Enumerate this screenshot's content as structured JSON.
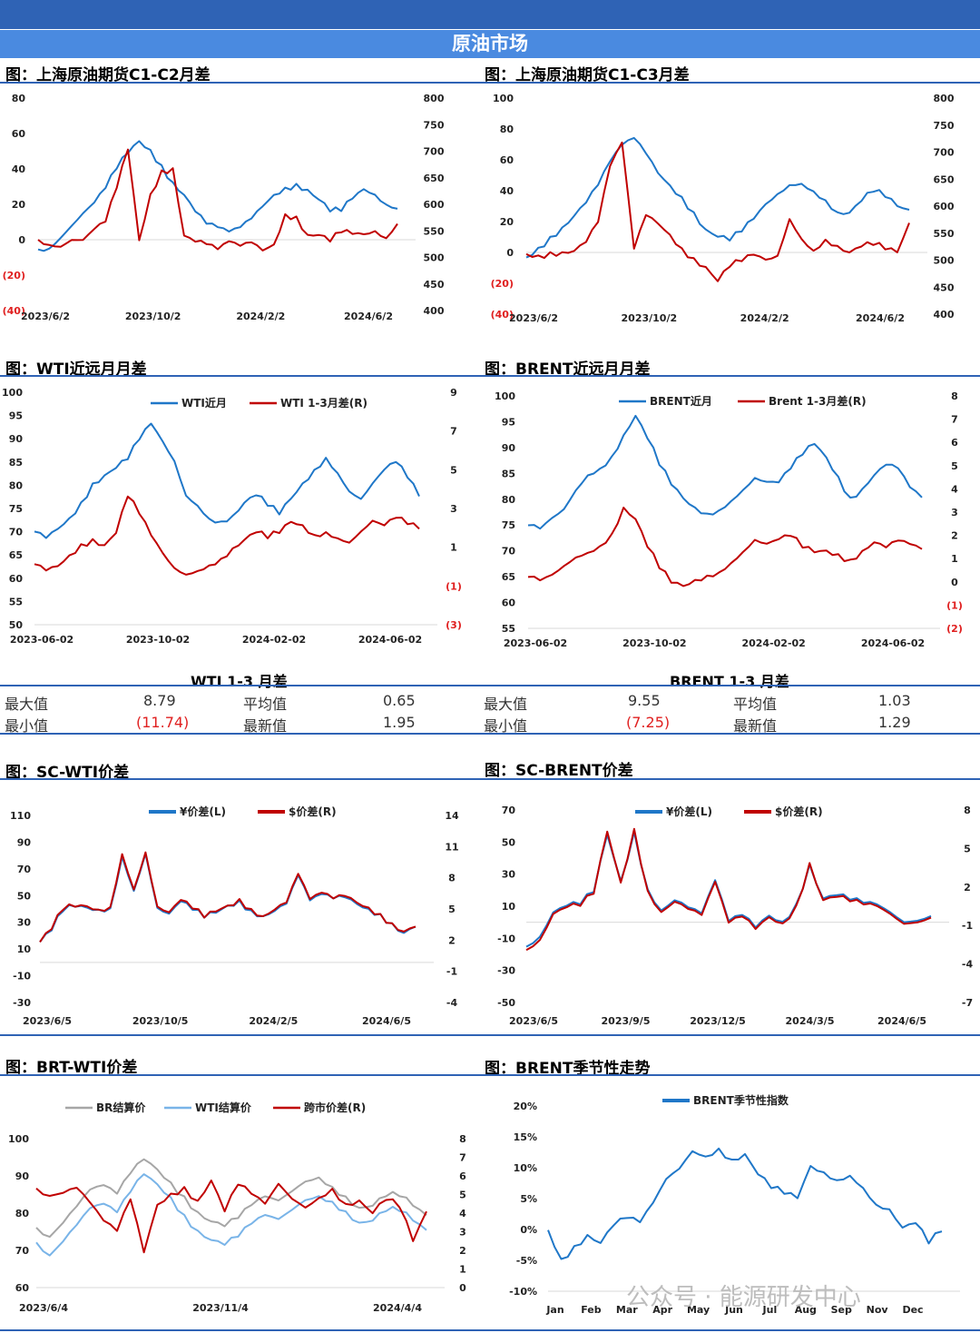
{
  "header": {
    "title": "原油市场"
  },
  "colors": {
    "blue": "#1f77c8",
    "red": "#c00000",
    "gray": "#a6a6a6",
    "lightblue": "#79b4e8",
    "neg": "#e02020"
  },
  "watermark": "公众号 · 能源研发中心",
  "wti_stats": {
    "title": "WTI 1-3 月差",
    "max_label": "最大值",
    "max": "8.79",
    "min_label": "最小值",
    "min": "(11.74)",
    "avg_label": "平均值",
    "avg": "0.65",
    "latest_label": "最新值",
    "latest": "1.95"
  },
  "brent_stats": {
    "title": "BRENT 1-3 月差",
    "max_label": "最大值",
    "max": "9.55",
    "min_label": "最小值",
    "min": "(7.25)",
    "avg_label": "平均值",
    "avg": "1.03",
    "latest_label": "最新值",
    "latest": "1.29"
  },
  "chart_data": [
    {
      "id": "c1",
      "type": "line",
      "title": "图：上海原油期货C1-C2月差",
      "x_ticks": [
        "2023/6/2",
        "2023/10/2",
        "2024/2/2",
        "2024/6/2"
      ],
      "yl": {
        "ticks": [
          80,
          60,
          40,
          20,
          0,
          -20,
          -40
        ],
        "labels": [
          "80",
          "60",
          "40",
          "20",
          "0",
          "(20)",
          "(40)"
        ],
        "min": -40,
        "max": 80
      },
      "yr": {
        "ticks": [
          800,
          750,
          700,
          650,
          600,
          550,
          500,
          450,
          400
        ],
        "labels": [
          "800",
          "750",
          "700",
          "650",
          "600",
          "550",
          "500",
          "450",
          "400"
        ],
        "min": 400,
        "max": 800
      },
      "series": [
        {
          "axis": "right",
          "color": "blue",
          "values": [
            515,
            520,
            540,
            560,
            580,
            600,
            630,
            670,
            700,
            720,
            700,
            670,
            640,
            620,
            590,
            565,
            555,
            545,
            555,
            575,
            600,
            620,
            630,
            635,
            625,
            610,
            590,
            590,
            610,
            625,
            615,
            600,
            595
          ]
        },
        {
          "axis": "left",
          "color": "red",
          "values": [
            0,
            -2,
            -3,
            0,
            -1,
            5,
            10,
            30,
            52,
            0,
            25,
            38,
            40,
            3,
            0,
            -2,
            -6,
            -2,
            -4,
            -1,
            -5,
            -2,
            14,
            12,
            2,
            3,
            0,
            5,
            3,
            2,
            4,
            1,
            10
          ]
        }
      ]
    },
    {
      "id": "c2",
      "type": "line",
      "title": "图：上海原油期货C1-C3月差",
      "x_ticks": [
        "2023/6/2",
        "2023/10/2",
        "2024/2/2",
        "2024/6/2"
      ],
      "yl": {
        "ticks": [
          100,
          80,
          60,
          40,
          20,
          0,
          -20,
          -40
        ],
        "labels": [
          "100",
          "80",
          "60",
          "40",
          "20",
          "0",
          "(20)",
          "(40)"
        ],
        "min": -40,
        "max": 100
      },
      "yr": {
        "ticks": [
          800,
          750,
          700,
          650,
          600,
          550,
          500,
          450,
          400
        ],
        "labels": [
          "800",
          "750",
          "700",
          "650",
          "600",
          "550",
          "500",
          "450",
          "400"
        ],
        "min": 400,
        "max": 800
      },
      "series": [
        {
          "axis": "right",
          "color": "blue",
          "values": [
            505,
            520,
            540,
            560,
            585,
            610,
            640,
            680,
            710,
            725,
            700,
            665,
            640,
            615,
            585,
            555,
            545,
            540,
            555,
            575,
            600,
            620,
            640,
            645,
            630,
            610,
            585,
            585,
            610,
            630,
            620,
            600,
            590
          ]
        },
        {
          "axis": "left",
          "color": "red",
          "values": [
            -1,
            -3,
            -1,
            0,
            2,
            8,
            20,
            55,
            70,
            2,
            25,
            20,
            12,
            2,
            -5,
            -10,
            -18,
            -8,
            -5,
            -2,
            -6,
            -3,
            22,
            10,
            2,
            8,
            3,
            -1,
            4,
            6,
            3,
            0,
            18
          ]
        }
      ]
    },
    {
      "id": "c3",
      "type": "line",
      "title": "图：WTI近远月月差",
      "x_ticks": [
        "2023-06-02",
        "2023-10-02",
        "2024-02-02",
        "2024-06-02"
      ],
      "legend": [
        "WTI近月",
        "WTI 1-3月差(R)"
      ],
      "yl": {
        "ticks": [
          100,
          95,
          90,
          85,
          80,
          75,
          70,
          65,
          60,
          55,
          50
        ],
        "labels": [
          "100",
          "95",
          "90",
          "85",
          "80",
          "75",
          "70",
          "65",
          "60",
          "55",
          "50"
        ],
        "min": 50,
        "max": 100
      },
      "yr": {
        "ticks": [
          9,
          7,
          5,
          3,
          1,
          -1,
          -3
        ],
        "labels": [
          "9",
          "7",
          "5",
          "3",
          "1",
          "(1)",
          "(3)"
        ],
        "min": -3,
        "max": 9
      },
      "series": [
        {
          "axis": "left",
          "name": "WTI近月",
          "color": "blue",
          "values": [
            70,
            69,
            71,
            73,
            76,
            80,
            82,
            84,
            86,
            90,
            93,
            89,
            85,
            78,
            76,
            73,
            72,
            73,
            76,
            78,
            76,
            74,
            77,
            80,
            83,
            86,
            83,
            79,
            77,
            80,
            83,
            85,
            82,
            78
          ]
        },
        {
          "axis": "left",
          "name": "WTI 1-3月差(R)",
          "color": "red",
          "values": [
            63,
            62,
            63,
            65,
            67,
            68,
            67,
            70,
            78,
            74,
            69,
            65,
            62,
            61,
            62,
            63,
            64,
            66,
            68,
            70,
            69,
            70,
            72,
            71,
            69,
            70,
            69,
            68,
            70,
            72,
            71,
            73,
            72,
            71
          ]
        }
      ]
    },
    {
      "id": "c4",
      "type": "line",
      "title": "图：BRENT近远月月差",
      "x_ticks": [
        "2023-06-02",
        "2023-10-02",
        "2024-02-02",
        "2024-06-02"
      ],
      "legend": [
        "BRENT近月",
        "Brent 1-3月差(R)"
      ],
      "yl": {
        "ticks": [
          100,
          95,
          90,
          85,
          80,
          75,
          70,
          65,
          60,
          55
        ],
        "labels": [
          "100",
          "95",
          "90",
          "85",
          "80",
          "75",
          "70",
          "65",
          "60",
          "55"
        ],
        "min": 55,
        "max": 100
      },
      "yr": {
        "ticks": [
          8,
          7,
          6,
          5,
          4,
          3,
          2,
          1,
          0,
          -1,
          -2
        ],
        "labels": [
          "8",
          "7",
          "6",
          "5",
          "4",
          "3",
          "2",
          "1",
          "0",
          "(1)",
          "(2)"
        ],
        "min": -2,
        "max": 8
      },
      "series": [
        {
          "axis": "left",
          "name": "BRENT近月",
          "color": "blue",
          "values": [
            75,
            74,
            76,
            78,
            82,
            85,
            86,
            88,
            92,
            96,
            92,
            87,
            83,
            80,
            78,
            77,
            78,
            80,
            82,
            84,
            83,
            83,
            86,
            89,
            91,
            88,
            84,
            80,
            82,
            85,
            87,
            86,
            82,
            80
          ]
        },
        {
          "axis": "left",
          "name": "Brent 1-3月差(R)",
          "color": "red",
          "values": [
            65,
            64,
            65,
            67,
            69,
            70,
            71,
            73,
            78,
            76,
            71,
            67,
            64,
            63,
            64,
            65,
            66,
            68,
            70,
            72,
            71,
            72,
            73,
            71,
            70,
            70,
            69,
            68,
            70,
            72,
            71,
            72,
            71,
            70
          ]
        }
      ]
    },
    {
      "id": "c5",
      "type": "line",
      "title": "图：SC-WTI价差",
      "x_ticks": [
        "2023/6/5",
        "2023/10/5",
        "2024/2/5",
        "2024/6/5"
      ],
      "legend": [
        "¥价差(L)",
        "$价差(R)"
      ],
      "yl": {
        "ticks": [
          110,
          90,
          70,
          50,
          30,
          10,
          -10,
          -30
        ],
        "labels": [
          "110",
          "90",
          "70",
          "50",
          "30",
          "10",
          "-10",
          "-30"
        ],
        "min": -30,
        "max": 110
      },
      "yr": {
        "ticks": [
          14,
          11,
          8,
          5,
          2,
          -1,
          -4
        ],
        "labels": [
          "14",
          "11",
          "8",
          "5",
          "2",
          "-1",
          "-4"
        ],
        "min": -4,
        "max": 14
      },
      "series": [
        {
          "axis": "left",
          "name": "¥价差(L)",
          "color": "blue",
          "values": [
            15,
            25,
            40,
            42,
            40,
            38,
            40,
            80,
            55,
            82,
            40,
            35,
            45,
            40,
            35,
            38,
            42,
            45,
            38,
            35,
            40,
            45,
            65,
            45,
            50,
            48,
            50,
            45,
            40,
            35,
            28,
            22,
            28
          ]
        },
        {
          "axis": "left",
          "name": "$价差(R)",
          "color": "red",
          "values": [
            15,
            26,
            41,
            42,
            41,
            38,
            41,
            82,
            56,
            83,
            41,
            36,
            46,
            41,
            35,
            39,
            42,
            46,
            39,
            35,
            41,
            46,
            66,
            46,
            51,
            48,
            51,
            46,
            41,
            35,
            28,
            23,
            28
          ]
        }
      ]
    },
    {
      "id": "c6",
      "type": "line",
      "title": "图：SC-BRENT价差",
      "x_ticks": [
        "2023/6/5",
        "2023/9/5",
        "2023/12/5",
        "2024/3/5",
        "2024/6/5"
      ],
      "legend": [
        "¥价差(L)",
        "$价差(R)"
      ],
      "yl": {
        "ticks": [
          70,
          50,
          30,
          10,
          -10,
          -30,
          -50
        ],
        "labels": [
          "70",
          "50",
          "30",
          "10",
          "-10",
          "-30",
          "-50"
        ],
        "min": -50,
        "max": 70
      },
      "yr": {
        "ticks": [
          8,
          5,
          2,
          -1,
          -4,
          -7
        ],
        "labels": [
          "8",
          "5",
          "2",
          "-1",
          "-4",
          "-7"
        ],
        "min": -7,
        "max": 8
      },
      "series": [
        {
          "axis": "left",
          "name": "¥价差(L)",
          "color": "blue",
          "values": [
            -15,
            -10,
            5,
            10,
            12,
            20,
            55,
            25,
            55,
            20,
            8,
            15,
            10,
            5,
            25,
            0,
            5,
            -2,
            5,
            0,
            10,
            35,
            15,
            18,
            15,
            12,
            10,
            5,
            0,
            2,
            5
          ]
        },
        {
          "axis": "left",
          "name": "$价差(R)",
          "color": "red",
          "values": [
            -17,
            -12,
            4,
            9,
            11,
            19,
            57,
            24,
            57,
            19,
            7,
            14,
            9,
            4,
            24,
            -1,
            4,
            -3,
            4,
            -1,
            9,
            36,
            14,
            17,
            14,
            11,
            9,
            4,
            -1,
            1,
            4
          ]
        }
      ]
    },
    {
      "id": "c7",
      "type": "line",
      "title": "图：BRT-WTI价差",
      "x_ticks": [
        "2023/6/4",
        "2023/11/4",
        "2024/4/4"
      ],
      "legend": [
        "BR结算价",
        "WTI结算价",
        "跨市价差(R)"
      ],
      "yl": {
        "ticks": [
          100,
          90,
          80,
          70,
          60
        ],
        "labels": [
          "100",
          "90",
          "80",
          "70",
          "60"
        ],
        "min": 60,
        "max": 100
      },
      "yr": {
        "ticks": [
          8,
          7,
          6,
          5,
          4,
          3,
          2,
          1,
          0
        ],
        "labels": [
          "8",
          "7",
          "6",
          "5",
          "4",
          "3",
          "2",
          "1",
          "0"
        ],
        "min": 0,
        "max": 8
      },
      "series": [
        {
          "axis": "left",
          "name": "BR结算价",
          "color": "gray",
          "values": [
            76,
            74,
            78,
            82,
            86,
            87,
            85,
            91,
            95,
            92,
            88,
            84,
            80,
            78,
            77,
            79,
            82,
            84,
            83,
            86,
            89,
            90,
            87,
            84,
            81,
            82,
            85,
            85,
            82,
            79
          ]
        },
        {
          "axis": "left",
          "name": "WTI结算价",
          "color": "lightblue",
          "values": [
            72,
            69,
            73,
            77,
            81,
            82,
            80,
            86,
            91,
            88,
            84,
            79,
            75,
            73,
            72,
            74,
            77,
            79,
            78,
            81,
            84,
            85,
            83,
            80,
            77,
            78,
            81,
            81,
            78,
            75
          ]
        },
        {
          "axis": "right",
          "name": "跨市价差(R)",
          "color": "red",
          "values": [
            5.3,
            5.0,
            5.2,
            5.4,
            4.5,
            3.5,
            3.0,
            4.8,
            2.0,
            4.5,
            5.0,
            5.3,
            4.6,
            5.8,
            4.2,
            5.6,
            5.0,
            4.4,
            5.5,
            4.8,
            4.4,
            4.9,
            5.3,
            4.4,
            4.6,
            4.0,
            4.8,
            4.4,
            2.5,
            4.0
          ]
        }
      ]
    },
    {
      "id": "c8",
      "type": "line",
      "title": "图：BRENT季节性走势",
      "x_ticks": [
        "Jan",
        "Feb",
        "Mar",
        "Apr",
        "May",
        "Jun",
        "Jul",
        "Aug",
        "Sep",
        "Nov",
        "Dec"
      ],
      "legend": [
        "BRENT季节性指数"
      ],
      "yl": {
        "ticks": [
          20,
          15,
          10,
          5,
          0,
          -5,
          -10
        ],
        "labels": [
          "20%",
          "15%",
          "10%",
          "5%",
          "0%",
          "-5%",
          "-10%"
        ],
        "min": -10,
        "max": 20
      },
      "series": [
        {
          "axis": "left",
          "name": "BRENT季节性指数",
          "color": "blue",
          "values": [
            0,
            -5,
            -3,
            -1,
            -2,
            1,
            2,
            1,
            4,
            8,
            10,
            13,
            12,
            13,
            11,
            12,
            9,
            7,
            6,
            5,
            10,
            9,
            8,
            9,
            7,
            4,
            3,
            0,
            1,
            -2,
            0
          ]
        }
      ]
    }
  ]
}
